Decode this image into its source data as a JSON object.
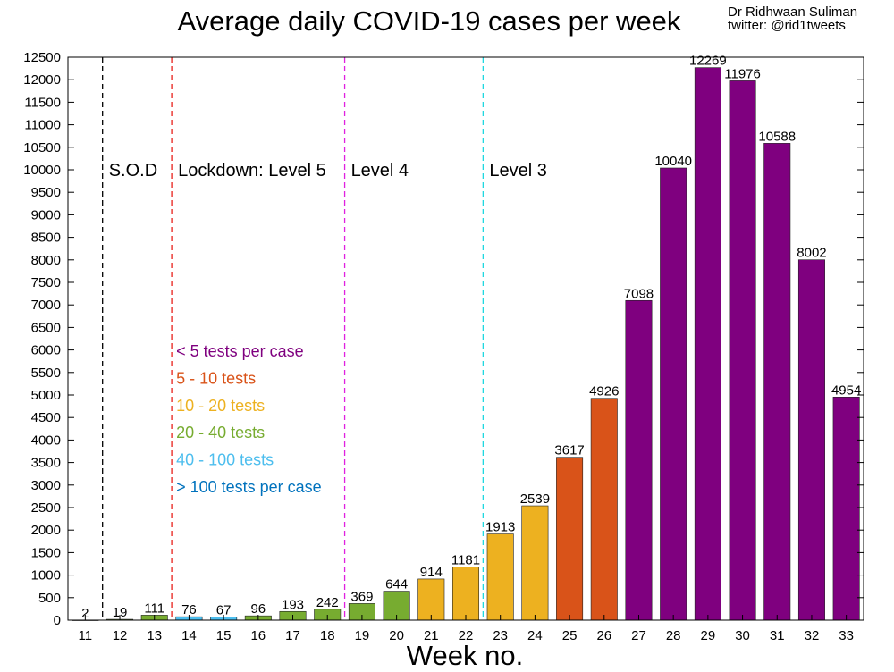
{
  "header": {
    "title": "Average daily COVID-19 cases per week",
    "author": "Dr Ridhwaan Suliman",
    "twitter": "twitter: @rid1tweets"
  },
  "chart_data": {
    "type": "bar",
    "title": "Average daily COVID-19 cases per week",
    "xlabel": "Week no.",
    "ylabel": "",
    "ylim": [
      0,
      12500
    ],
    "yticks": [
      0,
      500,
      1000,
      1500,
      2000,
      2500,
      3000,
      3500,
      4000,
      4500,
      5000,
      5500,
      6000,
      6500,
      7000,
      7500,
      8000,
      8500,
      9000,
      9500,
      10000,
      10500,
      11000,
      11500,
      12000,
      12500
    ],
    "categories": [
      "11",
      "12",
      "13",
      "14",
      "15",
      "16",
      "17",
      "18",
      "19",
      "20",
      "21",
      "22",
      "23",
      "24",
      "25",
      "26",
      "27",
      "28",
      "29",
      "30",
      "31",
      "32",
      "33"
    ],
    "values": [
      2,
      19,
      111,
      76,
      67,
      96,
      193,
      242,
      369,
      644,
      914,
      1181,
      1913,
      2539,
      3617,
      4926,
      7098,
      10040,
      12269,
      11976,
      10588,
      8002,
      4954
    ],
    "tests_per_case_band": [
      "gt100",
      "20to40",
      "20to40",
      "40to100",
      "40to100",
      "20to40",
      "20to40",
      "20to40",
      "20to40",
      "20to40",
      "10to20",
      "10to20",
      "10to20",
      "10to20",
      "5to10",
      "5to10",
      "lt5",
      "lt5",
      "lt5",
      "lt5",
      "lt5",
      "lt5",
      "lt5"
    ],
    "legend": [
      {
        "key": "lt5",
        "label": "< 5 tests per case",
        "color": "#7f007f"
      },
      {
        "key": "5to10",
        "label": "5 - 10 tests",
        "color": "#d95319"
      },
      {
        "key": "10to20",
        "label": "10 - 20 tests",
        "color": "#edb120"
      },
      {
        "key": "20to40",
        "label": "20 - 40 tests",
        "color": "#77ac30"
      },
      {
        "key": "40to100",
        "label": "40 - 100 tests",
        "color": "#4dbeee"
      },
      {
        "key": "gt100",
        "label": "> 100 tests per case",
        "color": "#0072bd"
      }
    ],
    "legend_position": "left-middle",
    "annotations": [
      {
        "label": "S.O.D",
        "line_after_week": "11",
        "line_color": "#000000"
      },
      {
        "label": "Lockdown: Level 5",
        "line_after_week": "13",
        "line_color": "#e8201a"
      },
      {
        "label": "Level 4",
        "line_after_week": "18",
        "line_color": "#e020e0"
      },
      {
        "label": "Level 3",
        "line_after_week": "22",
        "line_color": "#20d8e0"
      }
    ],
    "grid": false
  }
}
